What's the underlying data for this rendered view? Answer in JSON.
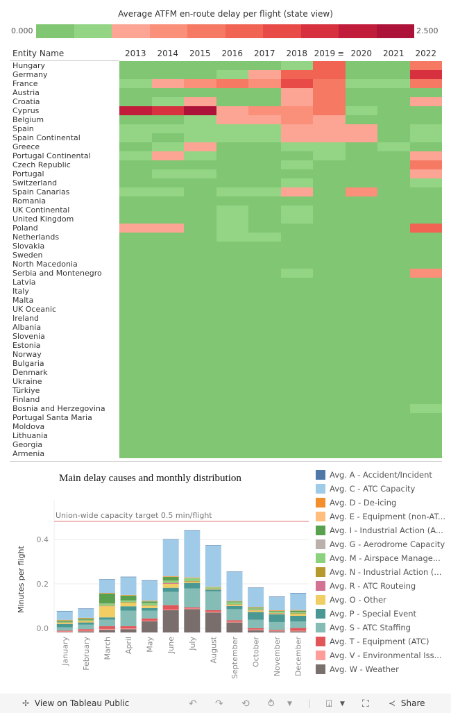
{
  "heatmap": {
    "title": "Average ATFM en-route delay per flight (state view)",
    "scale": {
      "min_label": "0.000",
      "max_label": "2.500",
      "colors": [
        "#80c673",
        "#93d584",
        "#fca594",
        "#fa8f7a",
        "#f57963",
        "#f16353",
        "#e84b47",
        "#d7303f",
        "#c21c3b",
        "#ad1338"
      ]
    },
    "entity_header": "Entity Name",
    "years": [
      "2013",
      "2014",
      "2015",
      "2016",
      "2017",
      "2018",
      "2019",
      "2020",
      "2021",
      "2022"
    ],
    "sorted_year_icon": "sort-descending-icon",
    "rows": [
      {
        "name": "Hungary",
        "levels": [
          0,
          0,
          0,
          0,
          0,
          1,
          5,
          0,
          0,
          4
        ]
      },
      {
        "name": "Germany",
        "levels": [
          0,
          0,
          0,
          1,
          2,
          5,
          5,
          0,
          0,
          7
        ]
      },
      {
        "name": "France",
        "levels": [
          1,
          2,
          3,
          4,
          3,
          6,
          4,
          1,
          1,
          4
        ]
      },
      {
        "name": "Austria",
        "levels": [
          0,
          0,
          0,
          0,
          0,
          2,
          4,
          0,
          0,
          0
        ]
      },
      {
        "name": "Croatia",
        "levels": [
          0,
          1,
          2,
          0,
          0,
          2,
          4,
          0,
          0,
          2
        ]
      },
      {
        "name": "Cyprus",
        "levels": [
          8,
          7,
          9,
          2,
          3,
          3,
          4,
          1,
          0,
          0
        ]
      },
      {
        "name": "Belgium",
        "levels": [
          0,
          0,
          1,
          2,
          2,
          3,
          2,
          0,
          0,
          0
        ]
      },
      {
        "name": "Spain",
        "levels": [
          1,
          1,
          1,
          1,
          1,
          2,
          2,
          2,
          0,
          1
        ]
      },
      {
        "name": "Spain Continental",
        "levels": [
          1,
          0,
          1,
          1,
          1,
          2,
          2,
          2,
          0,
          1
        ]
      },
      {
        "name": "Greece",
        "levels": [
          0,
          1,
          2,
          0,
          0,
          1,
          1,
          0,
          1,
          0
        ]
      },
      {
        "name": "Portugal Continental",
        "levels": [
          1,
          2,
          1,
          0,
          0,
          0,
          1,
          0,
          0,
          2
        ]
      },
      {
        "name": "Czech Republic",
        "levels": [
          0,
          0,
          0,
          0,
          0,
          1,
          0,
          0,
          0,
          4
        ]
      },
      {
        "name": "Portugal",
        "levels": [
          0,
          1,
          1,
          0,
          0,
          0,
          0,
          0,
          0,
          2
        ]
      },
      {
        "name": "Switzerland",
        "levels": [
          0,
          0,
          0,
          0,
          0,
          1,
          0,
          0,
          0,
          1
        ]
      },
      {
        "name": "Spain Canarias",
        "levels": [
          1,
          1,
          0,
          1,
          1,
          2,
          0,
          3,
          0,
          0
        ]
      },
      {
        "name": "Romania",
        "levels": [
          0,
          0,
          0,
          0,
          0,
          0,
          0,
          0,
          0,
          0
        ]
      },
      {
        "name": "UK Continental",
        "levels": [
          0,
          0,
          0,
          1,
          0,
          1,
          0,
          0,
          0,
          0
        ]
      },
      {
        "name": "United Kingdom",
        "levels": [
          0,
          0,
          0,
          1,
          0,
          1,
          0,
          0,
          0,
          0
        ]
      },
      {
        "name": "Poland",
        "levels": [
          2,
          2,
          0,
          1,
          0,
          0,
          0,
          0,
          0,
          5
        ]
      },
      {
        "name": "Netherlands",
        "levels": [
          0,
          0,
          0,
          1,
          1,
          0,
          0,
          0,
          0,
          0
        ]
      },
      {
        "name": "Slovakia",
        "levels": [
          0,
          0,
          0,
          0,
          0,
          0,
          0,
          0,
          0,
          0
        ]
      },
      {
        "name": "Sweden",
        "levels": [
          0,
          0,
          0,
          0,
          0,
          0,
          0,
          0,
          0,
          0
        ]
      },
      {
        "name": "North Macedonia",
        "levels": [
          0,
          0,
          0,
          0,
          0,
          0,
          0,
          0,
          0,
          0
        ]
      },
      {
        "name": "Serbia and Montenegro",
        "levels": [
          0,
          0,
          0,
          0,
          0,
          1,
          0,
          0,
          0,
          3
        ]
      },
      {
        "name": "Latvia",
        "levels": [
          0,
          0,
          0,
          0,
          0,
          0,
          0,
          0,
          0,
          0
        ]
      },
      {
        "name": "Italy",
        "levels": [
          0,
          0,
          0,
          0,
          0,
          0,
          0,
          0,
          0,
          0
        ]
      },
      {
        "name": "Malta",
        "levels": [
          0,
          0,
          0,
          0,
          0,
          0,
          0,
          0,
          0,
          0
        ]
      },
      {
        "name": "UK Oceanic",
        "levels": [
          0,
          0,
          0,
          0,
          0,
          0,
          0,
          0,
          0,
          0
        ]
      },
      {
        "name": "Ireland",
        "levels": [
          0,
          0,
          0,
          0,
          0,
          0,
          0,
          0,
          0,
          0
        ]
      },
      {
        "name": "Albania",
        "levels": [
          0,
          0,
          0,
          0,
          0,
          0,
          0,
          0,
          0,
          0
        ]
      },
      {
        "name": "Slovenia",
        "levels": [
          0,
          0,
          0,
          0,
          0,
          0,
          0,
          0,
          0,
          0
        ]
      },
      {
        "name": "Estonia",
        "levels": [
          0,
          0,
          0,
          0,
          0,
          0,
          0,
          0,
          0,
          0
        ]
      },
      {
        "name": "Norway",
        "levels": [
          0,
          0,
          0,
          0,
          0,
          0,
          0,
          0,
          0,
          0
        ]
      },
      {
        "name": "Bulgaria",
        "levels": [
          0,
          0,
          0,
          0,
          0,
          0,
          0,
          0,
          0,
          0
        ]
      },
      {
        "name": "Denmark",
        "levels": [
          0,
          0,
          0,
          0,
          0,
          0,
          0,
          0,
          0,
          0
        ]
      },
      {
        "name": "Ukraine",
        "levels": [
          0,
          0,
          0,
          0,
          0,
          0,
          0,
          0,
          0,
          0
        ]
      },
      {
        "name": "Türkiye",
        "levels": [
          0,
          0,
          0,
          0,
          0,
          0,
          0,
          0,
          0,
          0
        ]
      },
      {
        "name": "Finland",
        "levels": [
          0,
          0,
          0,
          0,
          0,
          0,
          0,
          0,
          0,
          0
        ]
      },
      {
        "name": "Bosnia and Herzegovina",
        "levels": [
          0,
          0,
          0,
          0,
          0,
          0,
          0,
          0,
          0,
          1
        ]
      },
      {
        "name": "Portugal Santa Maria",
        "levels": [
          0,
          0,
          0,
          0,
          0,
          0,
          0,
          0,
          0,
          0
        ]
      },
      {
        "name": "Moldova",
        "levels": [
          0,
          0,
          0,
          0,
          0,
          0,
          0,
          0,
          0,
          0
        ]
      },
      {
        "name": "Lithuania",
        "levels": [
          0,
          0,
          0,
          0,
          0,
          0,
          0,
          0,
          0,
          0
        ]
      },
      {
        "name": "Georgia",
        "levels": [
          0,
          0,
          0,
          0,
          0,
          0,
          0,
          0,
          0,
          0
        ]
      },
      {
        "name": "Armenia",
        "levels": [
          0,
          0,
          0,
          0,
          0,
          0,
          0,
          0,
          0,
          0
        ]
      }
    ]
  },
  "chart_data": {
    "type": "bar",
    "stacked": true,
    "title": "Main delay causes and monthly distribution",
    "ylabel": "Minutes per flight",
    "xlabel": "",
    "ylim": [
      0,
      0.55
    ],
    "yticks": [
      "0.0",
      "0.2",
      "0.4"
    ],
    "yticks_values": [
      0,
      0.2,
      0.4
    ],
    "reference_line": {
      "value": 0.5,
      "label": "Union-wide capacity target 0.5 min/flight",
      "color": "#e8a3a3"
    },
    "categories": [
      "January",
      "February",
      "March",
      "April",
      "May",
      "June",
      "July",
      "August",
      "September",
      "October",
      "November",
      "December"
    ],
    "series": [
      {
        "name": "Avg. W - Weather",
        "color": "#7a6e6c",
        "values": [
          0.002,
          0.005,
          0.012,
          0.015,
          0.05,
          0.1,
          0.105,
          0.09,
          0.045,
          0.01,
          0.005,
          0.005
        ]
      },
      {
        "name": "Avg. V - Environmental Iss...",
        "color": "#fc9d9a",
        "values": [
          0.003,
          0.003,
          0.004,
          0.003,
          0.003,
          0.003,
          0.003,
          0.003,
          0.003,
          0.003,
          0.003,
          0.003
        ]
      },
      {
        "name": "Avg. T - Equipment (ATC)",
        "color": "#e15759",
        "values": [
          0.003,
          0.007,
          0.012,
          0.01,
          0.01,
          0.02,
          0.005,
          0.007,
          0.007,
          0.006,
          0.004,
          0.012
        ]
      },
      {
        "name": "Avg. S - ATC Staffing",
        "color": "#86bcb6",
        "values": [
          0.015,
          0.02,
          0.03,
          0.07,
          0.035,
          0.06,
          0.085,
          0.085,
          0.05,
          0.038,
          0.035,
          0.03
        ]
      },
      {
        "name": "Avg. P - Special Event",
        "color": "#499894",
        "values": [
          0.015,
          0.01,
          0.01,
          0.02,
          0.012,
          0.018,
          0.025,
          0.008,
          0.014,
          0.035,
          0.035,
          0.025
        ]
      },
      {
        "name": "Avg. O - Other",
        "color": "#f1ce63",
        "values": [
          0.004,
          0.005,
          0.05,
          0.015,
          0.01,
          0.018,
          0.005,
          0.002,
          0.005,
          0.007,
          0.003,
          0.008
        ]
      },
      {
        "name": "Avg. R - ATC Routeing",
        "color": "#d37295",
        "values": [
          0.001,
          0.001,
          0.001,
          0.001,
          0.001,
          0.003,
          0.001,
          0.001,
          0.001,
          0.001,
          0.001,
          0.001
        ]
      },
      {
        "name": "Avg. N - Industrial Action (...",
        "color": "#b6992d",
        "values": [
          0.002,
          0.002,
          0.002,
          0.002,
          0.002,
          0.002,
          0.003,
          0.002,
          0.002,
          0.002,
          0.002,
          0.002
        ]
      },
      {
        "name": "Avg. M - Airspace Manage...",
        "color": "#8cd17d",
        "values": [
          0.002,
          0.003,
          0.008,
          0.007,
          0.008,
          0.008,
          0.012,
          0.005,
          0.008,
          0.005,
          0.005,
          0.004
        ]
      },
      {
        "name": "Avg. G - Aerodrome Capacity",
        "color": "#bab0ac",
        "values": [
          0.001,
          0.001,
          0.001,
          0.001,
          0.001,
          0.001,
          0.001,
          0.001,
          0.001,
          0.001,
          0.001,
          0.001
        ]
      },
      {
        "name": "Avg. I - Industrial Action (A...",
        "color": "#59a14f",
        "values": [
          0.006,
          0.006,
          0.045,
          0.022,
          0.008,
          0.017,
          0.0,
          0.0,
          0.004,
          0.004,
          0.003,
          0.007
        ]
      },
      {
        "name": "Avg. E - Equipment (non-AT...",
        "color": "#ffbe7d",
        "values": [
          0.001,
          0.001,
          0.001,
          0.001,
          0.001,
          0.001,
          0.001,
          0.001,
          0.001,
          0.001,
          0.001,
          0.001
        ]
      },
      {
        "name": "Avg. D - De-icing",
        "color": "#f28e2b",
        "values": [
          0.002,
          0.002,
          0.002,
          0.002,
          0.002,
          0.002,
          0.002,
          0.001,
          0.001,
          0.002,
          0.002,
          0.002
        ]
      },
      {
        "name": "Avg. C - ATC Capacity",
        "color": "#a0cbe8",
        "values": [
          0.038,
          0.04,
          0.06,
          0.08,
          0.09,
          0.165,
          0.21,
          0.185,
          0.13,
          0.085,
          0.06,
          0.075
        ]
      },
      {
        "name": "Avg. A - Accident/Incident",
        "color": "#4e79a7",
        "values": [
          0.002,
          0.002,
          0.002,
          0.002,
          0.002,
          0.002,
          0.002,
          0.002,
          0.002,
          0.002,
          0.002,
          0.002
        ]
      }
    ],
    "legend": {
      "placement": "right",
      "entries": [
        {
          "label": "Avg. A - Accident/Incident",
          "color": "#4e79a7"
        },
        {
          "label": "Avg. C - ATC Capacity",
          "color": "#a0cbe8"
        },
        {
          "label": "Avg. D - De-icing",
          "color": "#f28e2b"
        },
        {
          "label": "Avg. E - Equipment (non-AT...",
          "color": "#ffbe7d"
        },
        {
          "label": "Avg. I - Industrial Action (A...",
          "color": "#59a14f"
        },
        {
          "label": "Avg. G - Aerodrome Capacity",
          "color": "#bab0ac"
        },
        {
          "label": "Avg. M - Airspace Manage...",
          "color": "#8cd17d"
        },
        {
          "label": "Avg. N - Industrial Action (...",
          "color": "#b6992d"
        },
        {
          "label": "Avg. R - ATC Routeing",
          "color": "#d37295"
        },
        {
          "label": "Avg. O - Other",
          "color": "#f1ce63"
        },
        {
          "label": "Avg. P - Special Event",
          "color": "#499894"
        },
        {
          "label": "Avg. S - ATC Staffing",
          "color": "#86bcb6"
        },
        {
          "label": "Avg. T - Equipment (ATC)",
          "color": "#e15759"
        },
        {
          "label": "Avg. V - Environmental Iss...",
          "color": "#ff9d9a"
        },
        {
          "label": "Avg. W - Weather",
          "color": "#79706e"
        }
      ]
    }
  },
  "footer": {
    "view_label": "View on Tableau Public",
    "share_label": "Share",
    "icons": [
      "tableau-logo-icon",
      "undo-icon",
      "redo-icon",
      "revert-icon",
      "refresh-icon",
      "download-icon",
      "fullscreen-icon",
      "share-icon"
    ]
  }
}
